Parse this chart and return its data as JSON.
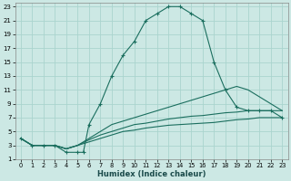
{
  "xlabel": "Humidex (Indice chaleur)",
  "bg_color": "#cce8e4",
  "grid_color": "#aad4ce",
  "line_color": "#1a6e5e",
  "xlim": [
    -0.5,
    23.5
  ],
  "ylim": [
    1,
    23.5
  ],
  "xticks": [
    0,
    1,
    2,
    3,
    4,
    5,
    6,
    7,
    8,
    9,
    10,
    11,
    12,
    13,
    14,
    15,
    16,
    17,
    18,
    19,
    20,
    21,
    22,
    23
  ],
  "yticks": [
    1,
    3,
    5,
    7,
    9,
    11,
    13,
    15,
    17,
    19,
    21,
    23
  ],
  "curves": [
    {
      "x": [
        0,
        1,
        2,
        3,
        4,
        5,
        5.5,
        6,
        7,
        8,
        9,
        10,
        11,
        12,
        13,
        14,
        15,
        16,
        17,
        18,
        19,
        20,
        21,
        22,
        23
      ],
      "y": [
        4,
        3,
        3,
        3,
        2,
        2,
        2,
        6,
        9,
        13,
        16,
        18,
        21,
        22,
        23,
        23,
        22,
        21,
        15,
        11,
        8.5,
        8,
        8,
        8,
        7
      ],
      "marker": "+",
      "linestyle": "-",
      "markersize": 3.5
    },
    {
      "x": [
        0,
        1,
        2,
        3,
        4,
        5,
        6,
        7,
        8,
        9,
        10,
        11,
        12,
        13,
        14,
        15,
        16,
        17,
        18,
        19,
        20,
        21,
        22,
        23
      ],
      "y": [
        4,
        3,
        3,
        3,
        2.5,
        3,
        4,
        5,
        6,
        6.5,
        7,
        7.5,
        8,
        8.5,
        9,
        9.5,
        10,
        10.5,
        11,
        11.5,
        11,
        10,
        9,
        8
      ],
      "marker": null,
      "linestyle": "-",
      "markersize": 0
    },
    {
      "x": [
        0,
        1,
        2,
        3,
        4,
        5,
        6,
        7,
        8,
        9,
        10,
        11,
        12,
        13,
        14,
        15,
        16,
        17,
        18,
        19,
        20,
        21,
        22,
        23
      ],
      "y": [
        4,
        3,
        3,
        3,
        2.5,
        3,
        3.8,
        4.5,
        5,
        5.5,
        6,
        6.2,
        6.5,
        6.8,
        7,
        7.2,
        7.3,
        7.5,
        7.7,
        7.8,
        8,
        8,
        8,
        8
      ],
      "marker": null,
      "linestyle": "-",
      "markersize": 0
    },
    {
      "x": [
        0,
        1,
        2,
        3,
        4,
        5,
        6,
        7,
        8,
        9,
        10,
        11,
        12,
        13,
        14,
        15,
        16,
        17,
        18,
        19,
        20,
        21,
        22,
        23
      ],
      "y": [
        4,
        3,
        3,
        3,
        2.5,
        3,
        3.5,
        4,
        4.5,
        5,
        5.2,
        5.5,
        5.7,
        5.9,
        6,
        6.1,
        6.2,
        6.3,
        6.5,
        6.7,
        6.8,
        7,
        7,
        7
      ],
      "marker": null,
      "linestyle": "-",
      "markersize": 0
    }
  ]
}
